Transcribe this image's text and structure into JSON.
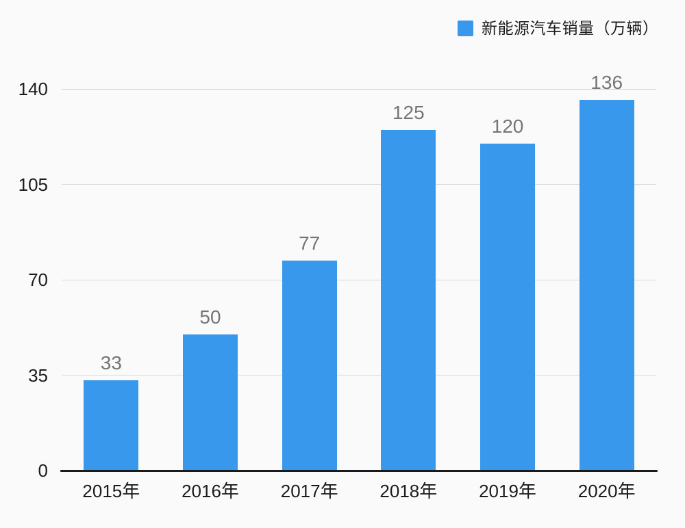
{
  "chart_data": {
    "type": "bar",
    "title": "",
    "legend": "新能源汽车销量（万辆）",
    "legend_position": "top-right",
    "categories": [
      "2015年",
      "2016年",
      "2017年",
      "2018年",
      "2019年",
      "2020年"
    ],
    "values": [
      33,
      50,
      77,
      125,
      120,
      136
    ],
    "xlabel": "",
    "ylabel": "",
    "ylim": [
      0,
      140
    ],
    "yticks": [
      0,
      35,
      70,
      105,
      140
    ],
    "grid": "horizontal-only",
    "colors": {
      "bar": "#3898EC",
      "value_label": "#757575",
      "axis_text": "#1c1c1e",
      "grid_line": "#d6d6d6",
      "axis_line": "#1a1a1a",
      "background": "#fafafa"
    }
  }
}
